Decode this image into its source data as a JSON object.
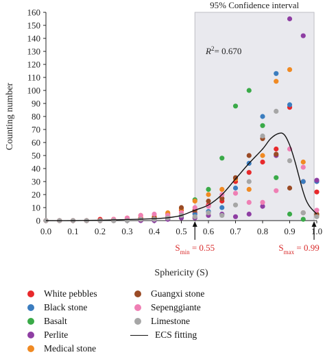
{
  "chart_data": {
    "type": "scatter",
    "xlabel": "Sphericity (S)",
    "ylabel": "Counting number",
    "xlim": [
      0.0,
      1.0
    ],
    "ylim": [
      0,
      160
    ],
    "xticks": [
      "0.0",
      "0.1",
      "0.2",
      "0.3",
      "0.4",
      "0.5",
      "0.6",
      "0.7",
      "0.8",
      "0.9",
      "1.0"
    ],
    "yticks": [
      "0",
      "10",
      "20",
      "30",
      "40",
      "50",
      "60",
      "70",
      "80",
      "90",
      "100",
      "110",
      "120",
      "130",
      "140",
      "150",
      "160"
    ],
    "ci_region": {
      "label": "95% Confidence interval",
      "x_start": 0.55,
      "x_end": 0.99
    },
    "r2_label": "R",
    "r2_sup": "2",
    "r2_value": "= 0.670",
    "s_min": {
      "prefix": "S",
      "sub": "min",
      "value": " = 0.55",
      "x": 0.55
    },
    "s_max": {
      "prefix": "S",
      "sub": "max",
      "value": " = 0.99",
      "x": 0.99
    },
    "series": [
      {
        "name": "White pebbles",
        "color": "#e8292b",
        "points": [
          [
            0.0,
            0
          ],
          [
            0.05,
            0
          ],
          [
            0.1,
            0
          ],
          [
            0.15,
            0
          ],
          [
            0.2,
            1
          ],
          [
            0.25,
            1
          ],
          [
            0.3,
            1
          ],
          [
            0.35,
            2
          ],
          [
            0.4,
            3
          ],
          [
            0.45,
            5
          ],
          [
            0.5,
            8
          ],
          [
            0.55,
            6
          ],
          [
            0.6,
            12
          ],
          [
            0.65,
            15
          ],
          [
            0.7,
            30
          ],
          [
            0.75,
            37
          ],
          [
            0.8,
            45
          ],
          [
            0.85,
            55
          ],
          [
            0.9,
            87
          ],
          [
            0.95,
            30
          ],
          [
            1.0,
            22
          ]
        ]
      },
      {
        "name": "Black stone",
        "color": "#3b7dbf",
        "points": [
          [
            0.0,
            0
          ],
          [
            0.05,
            0
          ],
          [
            0.1,
            0
          ],
          [
            0.15,
            0
          ],
          [
            0.2,
            0
          ],
          [
            0.25,
            0
          ],
          [
            0.3,
            1
          ],
          [
            0.35,
            1
          ],
          [
            0.4,
            1
          ],
          [
            0.45,
            2
          ],
          [
            0.5,
            3
          ],
          [
            0.55,
            5
          ],
          [
            0.6,
            7
          ],
          [
            0.65,
            10
          ],
          [
            0.7,
            25
          ],
          [
            0.75,
            44
          ],
          [
            0.8,
            80
          ],
          [
            0.85,
            113
          ],
          [
            0.9,
            89
          ],
          [
            0.95,
            30
          ],
          [
            1.0,
            30
          ]
        ]
      },
      {
        "name": "Basalt",
        "color": "#3aaa48",
        "points": [
          [
            0.0,
            0
          ],
          [
            0.05,
            0
          ],
          [
            0.1,
            0
          ],
          [
            0.15,
            0
          ],
          [
            0.2,
            0
          ],
          [
            0.25,
            0
          ],
          [
            0.3,
            0
          ],
          [
            0.35,
            1
          ],
          [
            0.4,
            1
          ],
          [
            0.45,
            2
          ],
          [
            0.5,
            3
          ],
          [
            0.55,
            16
          ],
          [
            0.6,
            24
          ],
          [
            0.65,
            48
          ],
          [
            0.7,
            88
          ],
          [
            0.75,
            100
          ],
          [
            0.8,
            73
          ],
          [
            0.85,
            33
          ],
          [
            0.9,
            5
          ],
          [
            0.95,
            1
          ],
          [
            1.0,
            5
          ]
        ]
      },
      {
        "name": "Perlite",
        "color": "#8e3ea3",
        "points": [
          [
            0.0,
            0
          ],
          [
            0.05,
            0
          ],
          [
            0.1,
            0
          ],
          [
            0.15,
            0
          ],
          [
            0.2,
            0
          ],
          [
            0.25,
            0
          ],
          [
            0.3,
            0
          ],
          [
            0.35,
            0
          ],
          [
            0.4,
            0
          ],
          [
            0.45,
            1
          ],
          [
            0.5,
            2
          ],
          [
            0.55,
            2
          ],
          [
            0.6,
            4
          ],
          [
            0.65,
            5
          ],
          [
            0.7,
            3
          ],
          [
            0.75,
            5
          ],
          [
            0.8,
            11
          ],
          [
            0.85,
            50
          ],
          [
            0.9,
            155
          ],
          [
            0.95,
            142
          ],
          [
            1.0,
            31
          ]
        ]
      },
      {
        "name": "Medical stone",
        "color": "#f08a23",
        "points": [
          [
            0.0,
            0
          ],
          [
            0.05,
            0
          ],
          [
            0.1,
            0
          ],
          [
            0.15,
            0
          ],
          [
            0.2,
            0
          ],
          [
            0.25,
            1
          ],
          [
            0.3,
            2
          ],
          [
            0.35,
            4
          ],
          [
            0.4,
            3
          ],
          [
            0.45,
            6
          ],
          [
            0.5,
            9
          ],
          [
            0.55,
            15
          ],
          [
            0.6,
            20
          ],
          [
            0.65,
            24
          ],
          [
            0.7,
            32
          ],
          [
            0.75,
            24
          ],
          [
            0.8,
            50
          ],
          [
            0.85,
            107
          ],
          [
            0.9,
            116
          ],
          [
            0.95,
            45
          ],
          [
            1.0,
            4
          ]
        ]
      },
      {
        "name": "Guangxi stone",
        "color": "#9a4b26",
        "points": [
          [
            0.0,
            0
          ],
          [
            0.05,
            0
          ],
          [
            0.1,
            0
          ],
          [
            0.15,
            0
          ],
          [
            0.2,
            0
          ],
          [
            0.25,
            0
          ],
          [
            0.3,
            1
          ],
          [
            0.35,
            1
          ],
          [
            0.4,
            2
          ],
          [
            0.45,
            3
          ],
          [
            0.5,
            10
          ],
          [
            0.55,
            8
          ],
          [
            0.6,
            15
          ],
          [
            0.65,
            17
          ],
          [
            0.7,
            33
          ],
          [
            0.75,
            50
          ],
          [
            0.8,
            63
          ],
          [
            0.85,
            51
          ],
          [
            0.9,
            25
          ],
          [
            0.95,
            6
          ],
          [
            1.0,
            5
          ]
        ]
      },
      {
        "name": "Sepenggiante",
        "color": "#ef7fb4",
        "points": [
          [
            0.0,
            0
          ],
          [
            0.05,
            0
          ],
          [
            0.1,
            0
          ],
          [
            0.15,
            0
          ],
          [
            0.2,
            0
          ],
          [
            0.25,
            1
          ],
          [
            0.3,
            2
          ],
          [
            0.35,
            4
          ],
          [
            0.4,
            5
          ],
          [
            0.45,
            4
          ],
          [
            0.5,
            6
          ],
          [
            0.55,
            10
          ],
          [
            0.6,
            11
          ],
          [
            0.65,
            20
          ],
          [
            0.7,
            21
          ],
          [
            0.75,
            14
          ],
          [
            0.8,
            14
          ],
          [
            0.85,
            23
          ],
          [
            0.9,
            55
          ],
          [
            0.95,
            41
          ],
          [
            1.0,
            8
          ]
        ]
      },
      {
        "name": "Limestone",
        "color": "#a6a6a6",
        "points": [
          [
            0.0,
            0
          ],
          [
            0.05,
            0
          ],
          [
            0.1,
            0
          ],
          [
            0.15,
            0
          ],
          [
            0.2,
            0
          ],
          [
            0.25,
            0
          ],
          [
            0.3,
            0
          ],
          [
            0.35,
            1
          ],
          [
            0.4,
            1
          ],
          [
            0.45,
            2
          ],
          [
            0.5,
            4
          ],
          [
            0.55,
            3
          ],
          [
            0.6,
            6
          ],
          [
            0.65,
            4
          ],
          [
            0.7,
            12
          ],
          [
            0.75,
            30
          ],
          [
            0.8,
            65
          ],
          [
            0.85,
            84
          ],
          [
            0.9,
            46
          ],
          [
            0.95,
            6
          ],
          [
            1.0,
            3
          ]
        ]
      }
    ],
    "fit": {
      "name": "ECS fitting",
      "color": "#111111",
      "x": [
        0.0,
        0.1,
        0.2,
        0.3,
        0.4,
        0.45,
        0.5,
        0.55,
        0.6,
        0.65,
        0.7,
        0.75,
        0.8,
        0.83,
        0.86,
        0.88,
        0.9,
        0.92,
        0.95,
        0.97,
        1.0
      ],
      "y": [
        0,
        0,
        0.3,
        0.8,
        1.5,
        2.2,
        4,
        8,
        12,
        20,
        32,
        44,
        55,
        63,
        67,
        66,
        58,
        45,
        22,
        12,
        5
      ]
    }
  },
  "legend": {
    "items": [
      {
        "label": "White pebbles",
        "color": "#e8292b",
        "kind": "dot"
      },
      {
        "label": "Black stone",
        "color": "#3b7dbf",
        "kind": "dot"
      },
      {
        "label": "Basalt",
        "color": "#3aaa48",
        "kind": "dot"
      },
      {
        "label": "Perlite",
        "color": "#8e3ea3",
        "kind": "dot"
      },
      {
        "label": "Medical stone",
        "color": "#f08a23",
        "kind": "dot"
      },
      {
        "label": "Guangxi stone",
        "color": "#9a4b26",
        "kind": "dot"
      },
      {
        "label": "Sepenggiante",
        "color": "#ef7fb4",
        "kind": "dot"
      },
      {
        "label": "Limestone",
        "color": "#a6a6a6",
        "kind": "dot"
      },
      {
        "label": "ECS fitting",
        "color": "#111111",
        "kind": "line"
      }
    ]
  }
}
